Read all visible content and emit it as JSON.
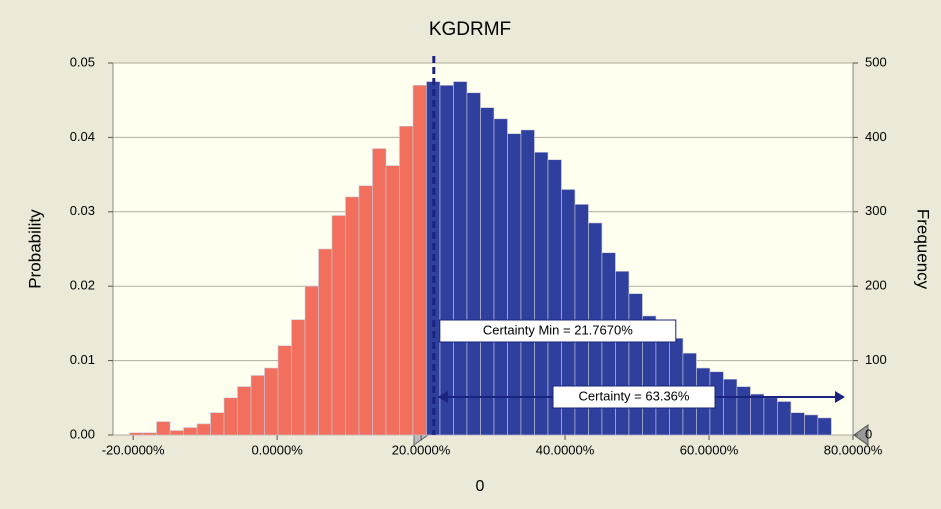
{
  "chart_data": {
    "type": "histogram",
    "title": "KGDRMF",
    "x_label": "0",
    "y_label": "Probability",
    "y2_label": "Frequency",
    "bins": [
      -20.5,
      -18.625,
      -16.75,
      -14.875,
      -13,
      -11.125,
      -9.25,
      -7.375,
      -5.5,
      -3.625,
      -1.75,
      0.125,
      2,
      3.875,
      5.75,
      7.625,
      9.5,
      11.375,
      13.25,
      15.125,
      17,
      18.875,
      20.75,
      22.625,
      24.5,
      26.375,
      28.25,
      30.125,
      32,
      33.875,
      35.75,
      37.625,
      39.5,
      41.375,
      43.25,
      45.125,
      47,
      48.875,
      50.75,
      52.625,
      54.5,
      56.375,
      58.25,
      60.125,
      62,
      63.875,
      65.75,
      67.625,
      69.5,
      71.375,
      73.25,
      75.125,
      77
    ],
    "values": [
      0.0003,
      0.0003,
      0.0018,
      0.0006,
      0.001,
      0.0015,
      0.003,
      0.005,
      0.0065,
      0.008,
      0.009,
      0.012,
      0.0155,
      0.02,
      0.025,
      0.0295,
      0.032,
      0.0335,
      0.0385,
      0.0362,
      0.0415,
      0.047,
      0.0475,
      0.047,
      0.0475,
      0.046,
      0.044,
      0.0425,
      0.0405,
      0.041,
      0.038,
      0.037,
      0.033,
      0.031,
      0.0285,
      0.0245,
      0.022,
      0.019,
      0.016,
      0.014,
      0.013,
      0.011,
      0.009,
      0.0085,
      0.0075,
      0.0065,
      0.0055,
      0.005,
      0.0045,
      0.003,
      0.0027,
      0.0023
    ],
    "color_below": "#f26f5e",
    "color_above": "#2f3f9e",
    "certainty_min": {
      "text": "Certainty Min = 21.7670%",
      "value": 21.767
    },
    "certainty": {
      "text": "Certainty = 63.36%",
      "value": 63.36
    },
    "xlim": [
      -22.8,
      80
    ],
    "xticks": [
      {
        "value": -20,
        "label": "-20.0000%"
      },
      {
        "value": 0,
        "label": "0.0000%"
      },
      {
        "value": 20,
        "label": "20.0000%"
      },
      {
        "value": 40,
        "label": "40.0000%"
      },
      {
        "value": 60,
        "label": "60.0000%"
      },
      {
        "value": 80,
        "label": "80.0000%"
      }
    ],
    "ylim": [
      0,
      0.05
    ],
    "yticks": [
      {
        "value": 0,
        "label": "0.00"
      },
      {
        "value": 0.01,
        "label": "0.01"
      },
      {
        "value": 0.02,
        "label": "0.02"
      },
      {
        "value": 0.03,
        "label": "0.03"
      },
      {
        "value": 0.04,
        "label": "0.04"
      },
      {
        "value": 0.05,
        "label": "0.05"
      }
    ],
    "y2lim": [
      0,
      500
    ],
    "y2ticks": [
      0,
      100,
      200,
      300,
      400,
      500
    ],
    "grid": true
  }
}
